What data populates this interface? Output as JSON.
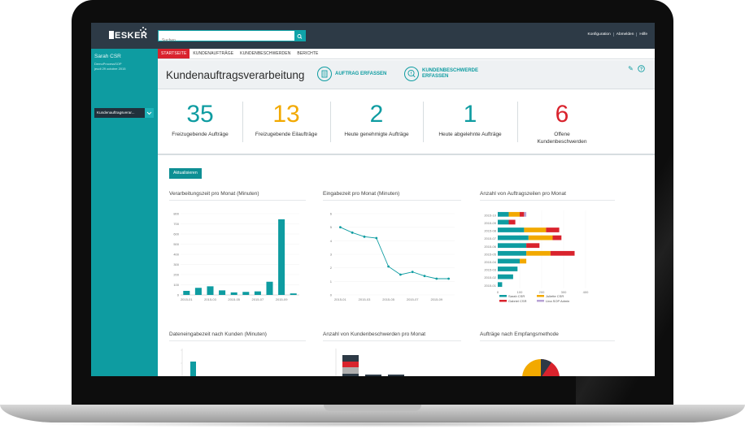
{
  "app": {
    "logo_text": "ESKER",
    "search_placeholder": "Suchen",
    "top_links": [
      "Konfiguration",
      "Abmelden",
      "Hilfe"
    ]
  },
  "sidebar": {
    "user_name": "Sarah CSR",
    "user_company": "DemoProcessSOP",
    "user_date": "jeudi 29 octobre 2015",
    "dashboard_select": "Kundenauftragsverar..."
  },
  "tabs": [
    "STARTSEITE",
    "KUNDENAUFTRÄGE",
    "KUNDENBESCHWERDEN",
    "BERICHTE"
  ],
  "header": {
    "title": "Kundenauftragsverarbeitung",
    "action_order": "AUFTRAG ERFASSEN",
    "action_complaint_line1": "KUNDENBESCHWERDE",
    "action_complaint_line2": "ERFASSEN"
  },
  "kpis": [
    {
      "value": "35",
      "label": "Freizugebende Aufträge",
      "color": "#0e9ca1"
    },
    {
      "value": "13",
      "label": "Freizugebende Eilaufträge",
      "color": "#f2a900"
    },
    {
      "value": "2",
      "label": "Heute genehmigte Aufträge",
      "color": "#0e9ca1"
    },
    {
      "value": "1",
      "label": "Heute abgelehnte Aufträge",
      "color": "#0e9ca1"
    },
    {
      "value": "6",
      "label_line1": "Offene",
      "label_line2": "Kundenbeschwerden",
      "color": "#d9232d"
    }
  ],
  "refresh_label": "Aktualisieren",
  "panels": {
    "p1": "Verarbeitungszeit pro Monat (Minuten)",
    "p2": "Eingabezeit pro Monat (Minuten)",
    "p3": "Anzahl von Auftragszeilen pro Monat",
    "p4": "Dateneingabezeit nach Kunden (Minuten)",
    "p5": "Anzahl von Kundenbeschwerden pro Monat",
    "p6": "Aufträge nach Empfangsmethode"
  },
  "colors": {
    "teal": "#0e9ca1",
    "orange": "#f2a900",
    "red": "#d9232d",
    "lavender": "#b8a3d6",
    "dark": "#2d3a46"
  },
  "chart_data": [
    {
      "type": "bar",
      "title": "Verarbeitungszeit pro Monat (Minuten)",
      "categories": [
        "2015-01",
        "2015-02",
        "2015-03",
        "2015-04",
        "2015-05",
        "2015-06",
        "2015-07",
        "2015-08",
        "2015-09",
        "2015-10"
      ],
      "x_tick_labels": [
        "2015-01",
        "2015-03",
        "2015-05",
        "2015-07",
        "2015-09"
      ],
      "values": [
        40,
        70,
        85,
        45,
        25,
        30,
        35,
        130,
        745,
        15
      ],
      "ylim": [
        0,
        800
      ],
      "y_ticks": [
        0,
        100,
        200,
        300,
        400,
        500,
        600,
        700,
        800
      ]
    },
    {
      "type": "line",
      "title": "Eingabezeit pro Monat (Minuten)",
      "categories": [
        "2015-01",
        "2015-02",
        "2015-03",
        "2015-04",
        "2015-05",
        "2015-06",
        "2015-07",
        "2015-08",
        "2015-09",
        "2015-10"
      ],
      "x_tick_labels": [
        "2015-01",
        "2015-03",
        "2015-05",
        "2015-07",
        "2015-09"
      ],
      "values": [
        5.0,
        4.6,
        4.3,
        4.2,
        2.1,
        1.5,
        1.7,
        1.4,
        1.2,
        1.2
      ],
      "ylim": [
        0,
        6
      ],
      "y_ticks": [
        0,
        1,
        2,
        3,
        4,
        5,
        6
      ]
    },
    {
      "type": "bar",
      "orientation": "horizontal",
      "stacked": true,
      "title": "Anzahl von Auftragszeilen pro Monat",
      "categories": [
        "2015-10",
        "2015-09",
        "2015-08",
        "2015-07",
        "2015-06",
        "2015-05",
        "2015-04",
        "2015-03",
        "2015-02",
        "2015-01"
      ],
      "y_tick_labels": [
        "2015-10",
        "2015-09",
        "2015-08",
        "2015-07",
        "2015-06",
        "2015-05",
        "2015-04",
        "2015-03",
        "2015-02",
        "2015-01"
      ],
      "series": [
        {
          "name": "Sarah CSR",
          "values": [
            50,
            50,
            120,
            140,
            130,
            130,
            100,
            90,
            70,
            20
          ]
        },
        {
          "name": "Juliette CSR",
          "values": [
            50,
            0,
            100,
            110,
            0,
            110,
            30,
            0,
            0,
            0
          ]
        },
        {
          "name": "Gabriel CSR",
          "values": [
            20,
            30,
            60,
            40,
            60,
            110,
            0,
            0,
            0,
            0
          ]
        },
        {
          "name": "Lina SOP Admin",
          "values": [
            10,
            0,
            0,
            0,
            0,
            0,
            0,
            0,
            0,
            0
          ]
        }
      ],
      "xlim": [
        0,
        400
      ],
      "x_ticks": [
        0,
        100,
        200,
        300,
        400
      ],
      "legend": "bottom"
    }
  ]
}
